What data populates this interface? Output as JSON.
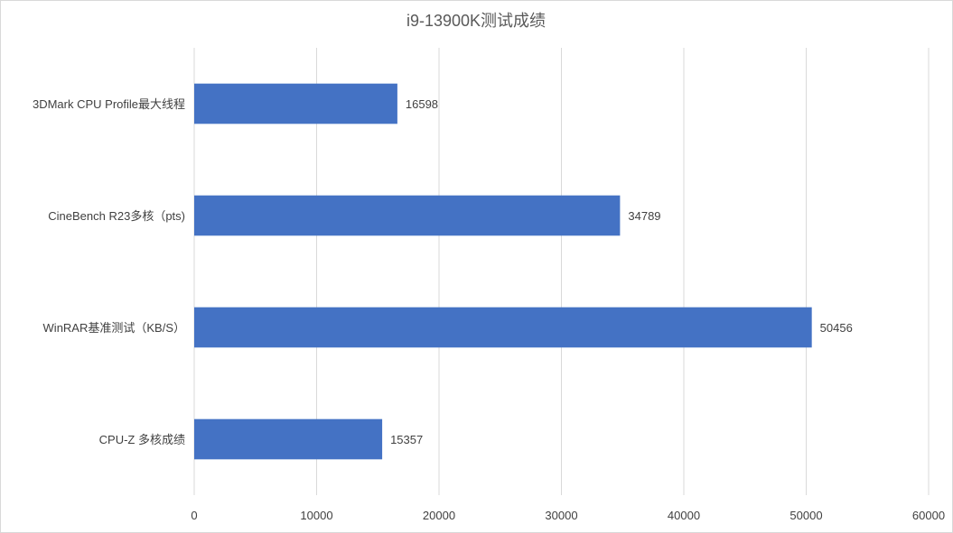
{
  "chart_data": {
    "type": "bar",
    "orientation": "horizontal",
    "title": "i9-13900K测试成绩",
    "xlabel": "",
    "ylabel": "",
    "categories": [
      "3DMark CPU Profile最大线程",
      "CineBench R23多核（pts)",
      "WinRAR基准测试（KB/S）",
      "CPU-Z 多核成绩"
    ],
    "values": [
      16598,
      34789,
      50456,
      15357
    ],
    "xlim": [
      0,
      60000
    ],
    "ticks": [
      0,
      10000,
      20000,
      30000,
      40000,
      50000,
      60000
    ],
    "grid": true,
    "legend": "none",
    "bar_color": "#4472C4"
  }
}
